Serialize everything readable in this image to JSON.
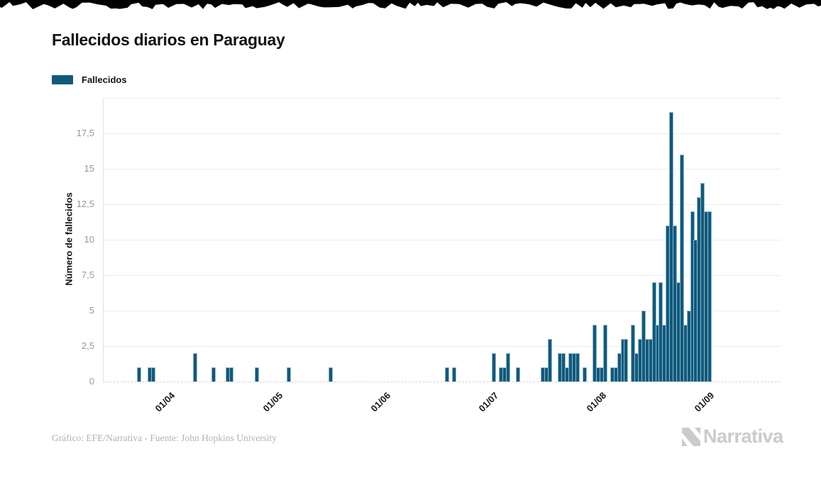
{
  "title": "Fallecidos diarios en Paraguay",
  "legend": {
    "label": "Fallecidos",
    "swatch_color": "#0f5a7d"
  },
  "colors": {
    "bar": "#0f5a7d",
    "bar_edge": "rgba(167,199,214,0.85)",
    "grid": "#ebebeb",
    "top_strip": "#000000",
    "brand_gray": "#cbcbcb"
  },
  "chart_data": {
    "type": "bar",
    "title": "Fallecidos diarios en Paraguay",
    "series_name": "Fallecidos",
    "xlabel": "",
    "ylabel": "Número de fallecidos",
    "ylim": [
      0,
      20
    ],
    "grid": true,
    "legend_position": "top-left",
    "y_tick_labels": [
      "0",
      "2,5",
      "5",
      "7,5",
      "10",
      "12,5",
      "15",
      "17,5"
    ],
    "x_tick_labels": [
      "01/04",
      "01/05",
      "01/06",
      "01/07",
      "01/08",
      "01/09"
    ],
    "date_format": "dd/mm",
    "points": [
      [
        "22/03",
        1
      ],
      [
        "25/03",
        1
      ],
      [
        "26/03",
        1
      ],
      [
        "07/04",
        2
      ],
      [
        "12/04",
        1
      ],
      [
        "16/04",
        1
      ],
      [
        "17/04",
        1
      ],
      [
        "24/04",
        1
      ],
      [
        "03/05",
        1
      ],
      [
        "15/05",
        1
      ],
      [
        "17/06",
        1
      ],
      [
        "19/06",
        1
      ],
      [
        "30/06",
        2
      ],
      [
        "02/07",
        1
      ],
      [
        "03/07",
        1
      ],
      [
        "04/07",
        2
      ],
      [
        "07/07",
        1
      ],
      [
        "14/07",
        1
      ],
      [
        "15/07",
        1
      ],
      [
        "16/07",
        3
      ],
      [
        "19/07",
        2
      ],
      [
        "20/07",
        2
      ],
      [
        "21/07",
        1
      ],
      [
        "22/07",
        2
      ],
      [
        "23/07",
        2
      ],
      [
        "24/07",
        2
      ],
      [
        "26/07",
        1
      ],
      [
        "29/07",
        4
      ],
      [
        "30/07",
        1
      ],
      [
        "31/07",
        1
      ],
      [
        "01/08",
        4
      ],
      [
        "03/08",
        1
      ],
      [
        "04/08",
        1
      ],
      [
        "05/08",
        2
      ],
      [
        "06/08",
        3
      ],
      [
        "07/08",
        3
      ],
      [
        "09/08",
        4
      ],
      [
        "10/08",
        2
      ],
      [
        "11/08",
        3
      ],
      [
        "12/08",
        5
      ],
      [
        "13/08",
        3
      ],
      [
        "14/08",
        3
      ],
      [
        "15/08",
        7
      ],
      [
        "16/08",
        4
      ],
      [
        "17/08",
        7
      ],
      [
        "18/08",
        4
      ],
      [
        "19/08",
        11
      ],
      [
        "20/08",
        19
      ],
      [
        "21/08",
        11
      ],
      [
        "22/08",
        7
      ],
      [
        "23/08",
        16
      ],
      [
        "24/08",
        4
      ],
      [
        "25/08",
        5
      ],
      [
        "26/08",
        12
      ],
      [
        "27/08",
        10
      ],
      [
        "28/08",
        13
      ],
      [
        "29/08",
        14
      ],
      [
        "30/08",
        12
      ],
      [
        "31/08",
        12
      ]
    ]
  },
  "footer": {
    "credit": "Gráfico: EFE/Narrativa - Fuente: John Hopkins University",
    "brand": "Narrativa"
  }
}
